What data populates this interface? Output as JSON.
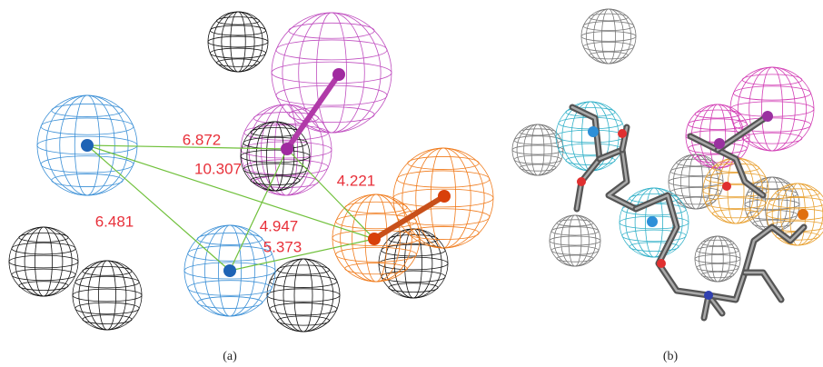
{
  "distances": [
    "6.872",
    "10.307",
    "4.221",
    "6.481",
    "4.947",
    "5.373"
  ],
  "panels": [
    "(a)",
    "(b)"
  ]
}
